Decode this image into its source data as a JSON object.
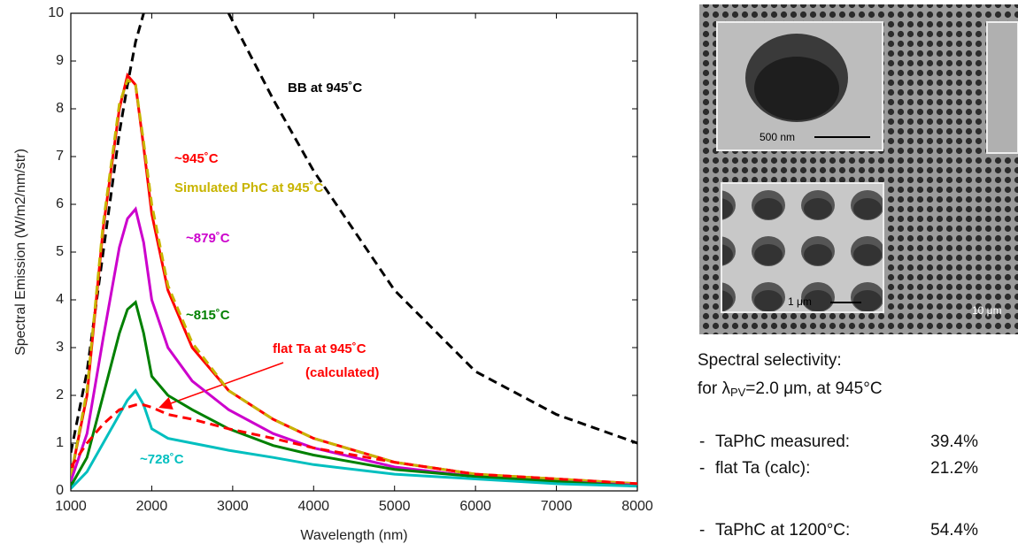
{
  "chart_data": {
    "type": "line",
    "xlabel": "Wavelength (nm)",
    "ylabel": "Spectral Emission (W/m2/nm/str)",
    "x": [
      1000,
      1200,
      1400,
      1600,
      1700,
      1800,
      1900,
      2000,
      2200,
      2500,
      2950,
      3500,
      4000,
      5000,
      6000,
      7000,
      8000
    ],
    "series": [
      {
        "name": "BB at 945˚C",
        "color": "#000000",
        "dashed": true,
        "values": [
          0.8,
          2.5,
          5,
          7.5,
          8.5,
          9.4,
          10,
          null,
          null,
          null,
          10,
          8.2,
          6.7,
          4.2,
          2.5,
          1.6,
          1.0
        ]
      },
      {
        "name": "~945˚C",
        "color": "#ff0000",
        "dashed": false,
        "values": [
          0.3,
          2,
          5.5,
          8,
          8.7,
          8.5,
          7.2,
          5.8,
          4.2,
          3.0,
          2.1,
          1.5,
          1.1,
          0.6,
          0.35,
          0.25,
          0.15
        ]
      },
      {
        "name": "Simulated PhC at 945˚C",
        "color": "#c8b400",
        "dashed": true,
        "values": [
          0.3,
          2.1,
          5.6,
          8.1,
          8.6,
          8.5,
          7.3,
          6.0,
          4.3,
          3.1,
          2.1,
          1.5,
          1.1,
          0.6,
          0.35,
          0.25,
          0.15
        ]
      },
      {
        "name": "~879˚C",
        "color": "#cc00cc",
        "dashed": false,
        "values": [
          0.2,
          1.2,
          3.2,
          5.1,
          5.7,
          5.9,
          5.2,
          4.0,
          3.0,
          2.3,
          1.7,
          1.2,
          0.9,
          0.5,
          0.3,
          0.2,
          0.12
        ]
      },
      {
        "name": "~815˚C",
        "color": "#008000",
        "dashed": false,
        "values": [
          0.1,
          0.7,
          2.0,
          3.3,
          3.8,
          3.95,
          3.3,
          2.4,
          2.0,
          1.7,
          1.3,
          0.95,
          0.75,
          0.45,
          0.3,
          0.2,
          0.1
        ]
      },
      {
        "name": "~728˚C",
        "color": "#00bfbf",
        "dashed": false,
        "values": [
          0.05,
          0.4,
          1.0,
          1.6,
          1.9,
          2.1,
          1.8,
          1.3,
          1.1,
          1.0,
          0.85,
          0.7,
          0.55,
          0.35,
          0.25,
          0.15,
          0.1
        ]
      },
      {
        "name": "flat Ta at 945˚C",
        "color": "#ff0000",
        "dashed": true,
        "values": [
          0.5,
          1.0,
          1.4,
          1.7,
          1.75,
          1.8,
          1.8,
          1.75,
          1.6,
          1.5,
          1.3,
          1.1,
          0.9,
          0.6,
          0.35,
          0.25,
          0.15
        ]
      }
    ],
    "annotations": [
      {
        "text": "BB at 945˚C",
        "color": "#000000"
      },
      {
        "text": "~945˚C",
        "color": "#ff0000"
      },
      {
        "text": "Simulated PhC at 945˚C",
        "color": "#c8b400"
      },
      {
        "text": "~879˚C",
        "color": "#cc00cc"
      },
      {
        "text": "~815˚C",
        "color": "#008000"
      },
      {
        "text": "flat Ta at 945˚C",
        "color": "#ff0000"
      },
      {
        "text": "(calculated)",
        "color": "#ff0000"
      },
      {
        "text": "~728˚C",
        "color": "#00bfbf"
      }
    ],
    "xlim": [
      1000,
      8000
    ],
    "xticks": [
      1000,
      2000,
      3000,
      4000,
      5000,
      6000,
      7000,
      8000
    ],
    "ylim": [
      0,
      10
    ],
    "yticks": [
      0,
      1,
      2,
      3,
      4,
      5,
      6,
      7,
      8,
      9,
      10
    ],
    "grid": false
  },
  "sem_image": {
    "scale_labels": [
      "500 nm",
      "1 μm",
      "10 μm"
    ]
  },
  "notes": {
    "heading": "Spectral selectivity:",
    "condition": {
      "prefix": "for λ",
      "subscript": "PV",
      "suffix": "=2.0 μm, at 945°C"
    },
    "items": [
      {
        "bullet": "-",
        "label": "TaPhC measured:",
        "value": "39.4%"
      },
      {
        "bullet": "-",
        "label": "flat Ta (calc):",
        "value": "21.2%"
      },
      {
        "bullet": "-",
        "label": "TaPhC at 1200°C:",
        "value": "54.4%"
      }
    ]
  }
}
